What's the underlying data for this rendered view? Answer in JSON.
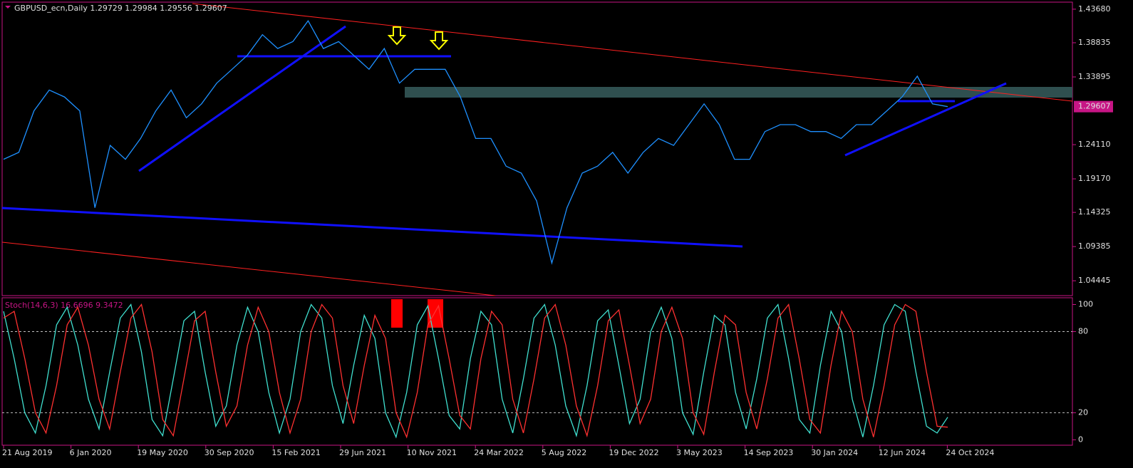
{
  "chart_data": [
    {
      "type": "line",
      "title": "GBPUSD_ecn,Daily  1.29729 1.29984 1.29556 1.29607",
      "color": "#1e90ff",
      "values": [
        1.22,
        1.23,
        1.29,
        1.32,
        1.31,
        1.29,
        1.15,
        1.24,
        1.22,
        1.25,
        1.29,
        1.32,
        1.28,
        1.3,
        1.33,
        1.35,
        1.37,
        1.4,
        1.38,
        1.39,
        1.42,
        1.38,
        1.39,
        1.37,
        1.35,
        1.38,
        1.33,
        1.35,
        1.35,
        1.35,
        1.31,
        1.25,
        1.25,
        1.21,
        1.2,
        1.16,
        1.07,
        1.15,
        1.2,
        1.21,
        1.23,
        1.2,
        1.23,
        1.25,
        1.24,
        1.27,
        1.3,
        1.27,
        1.22,
        1.22,
        1.26,
        1.27,
        1.27,
        1.26,
        1.26,
        1.25,
        1.27,
        1.27,
        1.29,
        1.31,
        1.34,
        1.3,
        1.29607
      ],
      "ylim": [
        1.023,
        1.447
      ],
      "yticks": [
        {
          "value": 1.4368,
          "label": "1.43680"
        },
        {
          "value": 1.38835,
          "label": "1.38835"
        },
        {
          "value": 1.33895,
          "label": "1.33895"
        },
        {
          "value": 1.2411,
          "label": "1.24110"
        },
        {
          "value": 1.1917,
          "label": "1.19170"
        },
        {
          "value": 1.14325,
          "label": "1.14325"
        },
        {
          "value": 1.09385,
          "label": "1.09385"
        },
        {
          "value": 1.04445,
          "label": "1.04445"
        }
      ],
      "current_price": {
        "value": 1.29607,
        "label": "1.29607"
      },
      "xticks": [
        "21 Aug 2019",
        "6 Jan 2020",
        "19 May 2020",
        "30 Sep 2020",
        "15 Feb 2021",
        "29 Jun 2021",
        "10 Nov 2021",
        "24 Mar 2022",
        "5 Aug 2022",
        "19 Dec 2022",
        "3 May 2023",
        "14 Sep 2023",
        "30 Jan 2024",
        "12 Jun 2024",
        "24 Oct 2024"
      ]
    },
    {
      "type": "line",
      "title": "Stoch(14,6,3) 16.6696 9.3472",
      "ylim": [
        -4,
        105
      ],
      "yticks": [
        100,
        80,
        20,
        0
      ],
      "levels": [
        80,
        20
      ],
      "series": [
        {
          "name": "Main",
          "color": "#40e0d0",
          "values": [
            95,
            60,
            20,
            5,
            40,
            85,
            98,
            70,
            30,
            8,
            50,
            90,
            100,
            65,
            15,
            3,
            45,
            88,
            95,
            50,
            10,
            25,
            70,
            98,
            80,
            35,
            5,
            30,
            80,
            100,
            90,
            40,
            12,
            55,
            92,
            75,
            20,
            2,
            35,
            85,
            99,
            60,
            18,
            8,
            60,
            95,
            85,
            30,
            5,
            45,
            90,
            100,
            70,
            25,
            3,
            40,
            88,
            96,
            55,
            12,
            30,
            80,
            98,
            75,
            20,
            4,
            50,
            92,
            85,
            35,
            8,
            45,
            90,
            100,
            60,
            15,
            5,
            55,
            95,
            80,
            30,
            2,
            40,
            85,
            100,
            95,
            50,
            10,
            5,
            16.6696
          ]
        },
        {
          "name": "Signal",
          "color": "#ff3030",
          "values": [
            90,
            95,
            60,
            20,
            5,
            40,
            85,
            98,
            70,
            30,
            8,
            50,
            90,
            100,
            65,
            15,
            3,
            45,
            88,
            95,
            50,
            10,
            25,
            70,
            98,
            80,
            35,
            5,
            30,
            80,
            100,
            90,
            40,
            12,
            55,
            92,
            75,
            20,
            2,
            35,
            85,
            99,
            60,
            18,
            8,
            60,
            95,
            85,
            30,
            5,
            45,
            90,
            100,
            70,
            25,
            3,
            40,
            88,
            96,
            55,
            12,
            30,
            80,
            98,
            75,
            20,
            4,
            50,
            92,
            85,
            35,
            8,
            45,
            90,
            100,
            60,
            15,
            5,
            55,
            95,
            80,
            30,
            2,
            40,
            85,
            100,
            95,
            50,
            10,
            9.3472
          ]
        }
      ]
    }
  ]
}
